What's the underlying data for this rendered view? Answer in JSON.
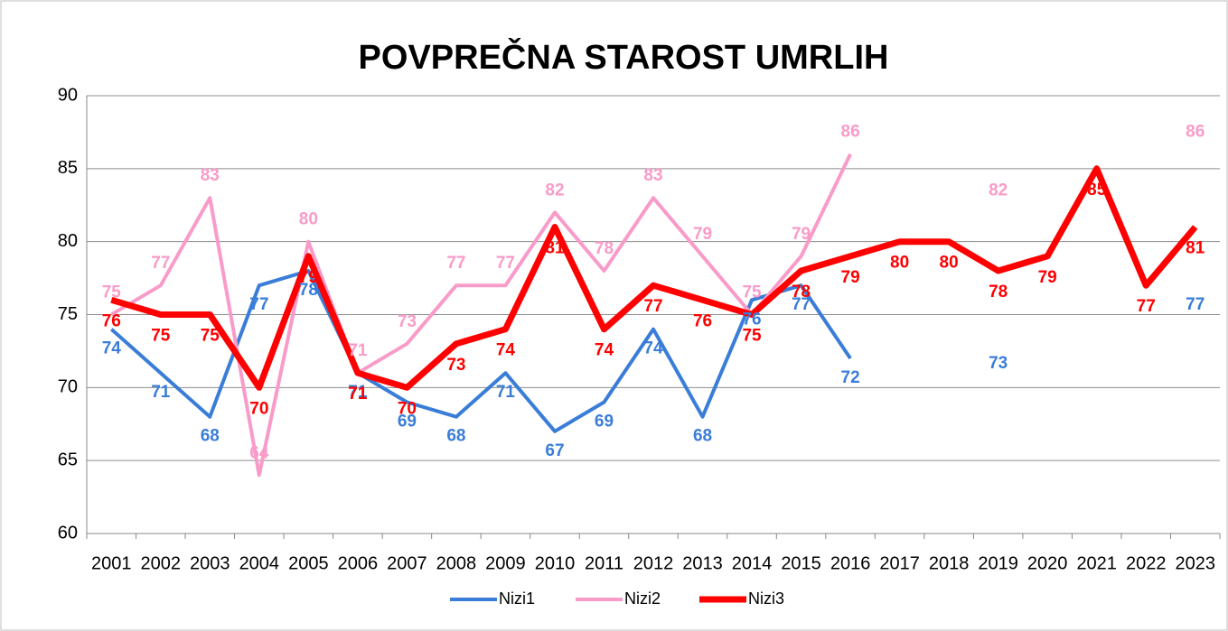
{
  "chart_data": {
    "type": "line",
    "title": "POVPREČNA STAROST UMRLIH",
    "categories": [
      "2001",
      "2002",
      "2003",
      "2004",
      "2005",
      "2006",
      "2007",
      "2008",
      "2009",
      "2010",
      "2011",
      "2012",
      "2013",
      "2014",
      "2015",
      "2016",
      "2017",
      "2018",
      "2019",
      "2020",
      "2021",
      "2022",
      "2023"
    ],
    "series": [
      {
        "name": "Nizi1",
        "color": "#3a7dd8",
        "values": [
          74,
          71,
          68,
          77,
          78,
          71,
          69,
          68,
          71,
          67,
          69,
          74,
          68,
          76,
          77,
          72,
          null,
          null,
          73,
          null,
          null,
          null,
          77
        ]
      },
      {
        "name": "Nizi2",
        "color": "#f99bc8",
        "values": [
          75,
          77,
          83,
          64,
          80,
          71,
          73,
          77,
          77,
          82,
          78,
          83,
          79,
          75,
          79,
          86,
          null,
          null,
          82,
          null,
          null,
          null,
          86
        ]
      },
      {
        "name": "Nizi3",
        "color": "#ff0000",
        "values": [
          76,
          75,
          75,
          70,
          79,
          71,
          70,
          73,
          74,
          81,
          74,
          77,
          76,
          75,
          78,
          79,
          80,
          80,
          78,
          79,
          85,
          77,
          81
        ]
      }
    ],
    "ylim": [
      60,
      90
    ],
    "yticks": [
      60,
      65,
      70,
      75,
      80,
      85,
      90
    ],
    "grid": true,
    "legend": "bottom"
  }
}
